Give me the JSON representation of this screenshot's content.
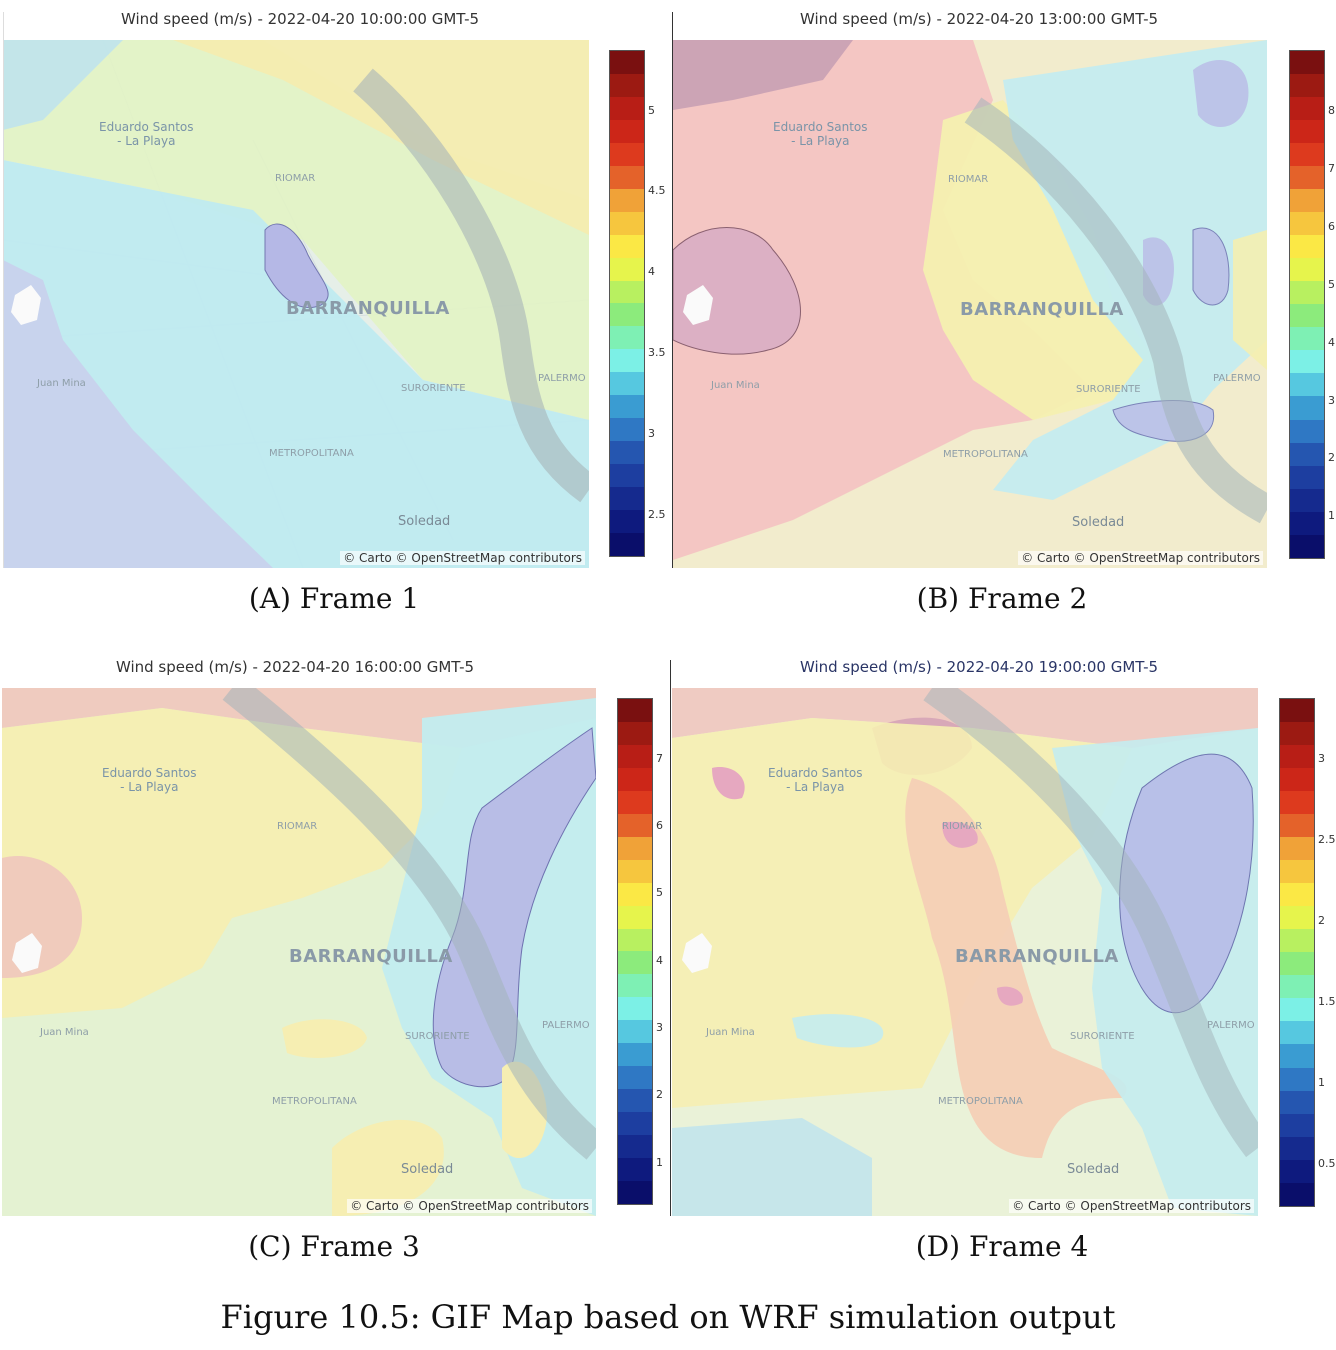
{
  "map_attribution": "© Carto © OpenStreetMap contributors",
  "place_labels": {
    "city": "BARRANQUILLA",
    "eduardo_line1": "Eduardo Santos",
    "eduardo_line2": "- La Playa",
    "riomar": "RIOMAR",
    "juan_mina": "Juan Mina",
    "palermo": "PALERMO",
    "suroriente": "SURORIENTE",
    "metropolitana": "METROPOLITANA",
    "soledad": "Soledad"
  },
  "frames": [
    {
      "title": "Wind speed (m/s) - 2022-04-20 10:00:00 GMT-5",
      "caption_letter": "A",
      "caption_text": "Frame 1",
      "colorbar_ticks": [
        "5",
        "4.5",
        "4",
        "3.5",
        "3",
        "2.5"
      ]
    },
    {
      "title": "Wind speed (m/s) - 2022-04-20 13:00:00 GMT-5",
      "caption_letter": "B",
      "caption_text": "Frame 2",
      "colorbar_ticks": [
        "8",
        "7",
        "6",
        "5",
        "4",
        "3",
        "2",
        "1"
      ]
    },
    {
      "title": "Wind speed (m/s) - 2022-04-20 16:00:00 GMT-5",
      "caption_letter": "C",
      "caption_text": "Frame 3",
      "colorbar_ticks": [
        "7",
        "6",
        "5",
        "4",
        "3",
        "2",
        "1"
      ]
    },
    {
      "title": "Wind speed (m/s) - 2022-04-20 19:00:00 GMT-5",
      "caption_letter": "D",
      "caption_text": "Frame 4",
      "colorbar_ticks": [
        "3",
        "2.5",
        "2",
        "1.5",
        "1",
        "0.5"
      ]
    }
  ],
  "colorscale": [
    "#7a1010",
    "#9c1a12",
    "#b81e16",
    "#cc2618",
    "#dd3a1e",
    "#e4622a",
    "#f0a238",
    "#f6c63e",
    "#fbe845",
    "#e6f44c",
    "#b8f060",
    "#8ceb7c",
    "#7ef0b4",
    "#7cf0e6",
    "#56c8e0",
    "#3a9cd2",
    "#2f78c4",
    "#2556b0",
    "#1d3ea0",
    "#152a8e",
    "#0e1a7e",
    "#0a0e6a"
  ],
  "figure_caption": {
    "label": "Figure 10.5:",
    "text": "GIF Map based on WRF simulation output"
  }
}
